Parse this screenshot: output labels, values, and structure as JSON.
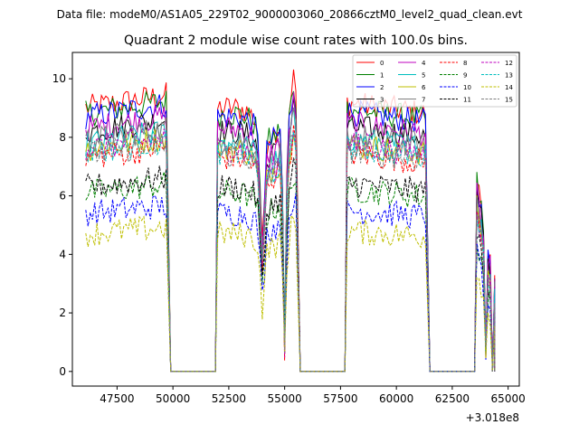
{
  "chart_data": {
    "type": "line",
    "suptitle": "Data file: modeM0/AS1A05_229T02_9000003060_20866cztM0_level2_quad_clean.evt",
    "title": "Quadrant 2 module wise count rates with 100.0s bins.",
    "xlabel": "",
    "ylabel": "",
    "x_offset_label": "+3.018e8",
    "xlim": [
      45500,
      65500
    ],
    "ylim": [
      -0.5,
      10.9
    ],
    "xticks": [
      47500,
      50000,
      52500,
      55000,
      57500,
      60000,
      62500,
      65000
    ],
    "xtick_labels": [
      "47500",
      "50000",
      "52500",
      "55000",
      "57500",
      "60000",
      "62500",
      "65000"
    ],
    "yticks": [
      0,
      2,
      4,
      6,
      8,
      10
    ],
    "ytick_labels": [
      "0",
      "2",
      "4",
      "6",
      "8",
      "10"
    ],
    "legend_position": "top-right",
    "segments": [
      {
        "x_start": 46100,
        "x_end": 49700,
        "drop_to_zero_at": 49900
      },
      {
        "x_start": 52000,
        "x_end": 55500,
        "drop_to_zero_at": 55700
      },
      {
        "x_start": 57800,
        "x_end": 61300,
        "drop_to_zero_at": 61500
      },
      {
        "x_start": 63600,
        "x_end": 64400,
        "drop_to_zero_at": 64400
      }
    ],
    "gap_zero_ranges": [
      [
        49900,
        51800
      ],
      [
        55700,
        57600
      ],
      [
        61500,
        63400
      ]
    ],
    "series": [
      {
        "name": "0",
        "color": "#ff0000",
        "dash": "solid",
        "base": 9.0
      },
      {
        "name": "1",
        "color": "#008000",
        "dash": "solid",
        "base": 8.8
      },
      {
        "name": "2",
        "color": "#0000ff",
        "dash": "solid",
        "base": 8.7
      },
      {
        "name": "3",
        "color": "#000000",
        "dash": "solid",
        "base": 8.2
      },
      {
        "name": "4",
        "color": "#bf00bf",
        "dash": "solid",
        "base": 8.3
      },
      {
        "name": "5",
        "color": "#00bfbf",
        "dash": "solid",
        "base": 7.8
      },
      {
        "name": "6",
        "color": "#bfbf00",
        "dash": "solid",
        "base": 7.6
      },
      {
        "name": "7",
        "color": "#7f7f7f",
        "dash": "solid",
        "base": 7.9
      },
      {
        "name": "8",
        "color": "#ff0000",
        "dash": "dashed",
        "base": 7.3
      },
      {
        "name": "9",
        "color": "#008000",
        "dash": "dashed",
        "base": 6.1
      },
      {
        "name": "10",
        "color": "#0000ff",
        "dash": "dashed",
        "base": 5.4
      },
      {
        "name": "11",
        "color": "#000000",
        "dash": "dashed",
        "base": 6.3
      },
      {
        "name": "12",
        "color": "#bf00bf",
        "dash": "dashed",
        "base": 7.6
      },
      {
        "name": "13",
        "color": "#00bfbf",
        "dash": "dashed",
        "base": 7.5
      },
      {
        "name": "14",
        "color": "#bfbf00",
        "dash": "dashed",
        "base": 4.7
      },
      {
        "name": "15",
        "color": "#7f7f7f",
        "dash": "dashed",
        "base": 7.4
      }
    ]
  }
}
